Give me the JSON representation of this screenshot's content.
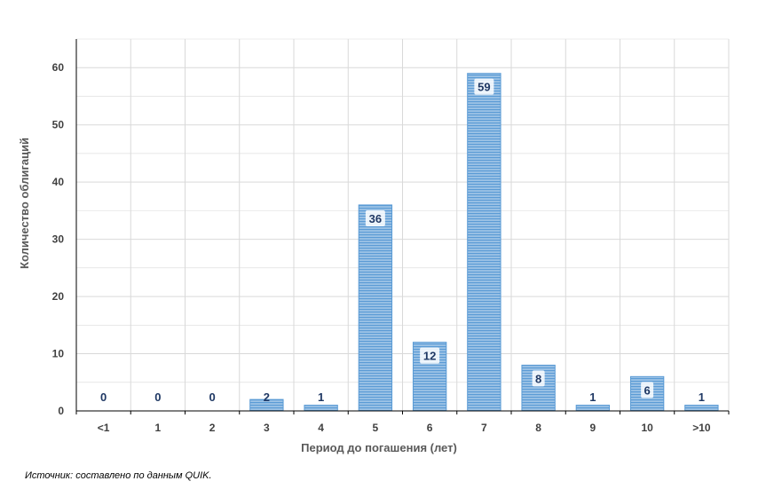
{
  "chart_data": {
    "type": "bar",
    "categories": [
      "<1",
      "1",
      "2",
      "3",
      "4",
      "5",
      "6",
      "7",
      "8",
      "9",
      "10",
      ">10"
    ],
    "values": [
      0,
      0,
      0,
      2,
      1,
      36,
      12,
      59,
      8,
      1,
      6,
      1
    ],
    "data_labels": [
      "0",
      "0",
      "0",
      "2",
      "1",
      "36",
      "12",
      "59",
      "8",
      "1",
      "6",
      "1"
    ],
    "title": "",
    "xlabel": "Период до погашения (лет)",
    "ylabel": "Количество облигаций",
    "ylim": [
      0,
      65
    ],
    "yticks": [
      0,
      10,
      20,
      30,
      40,
      50,
      60
    ],
    "grid": true,
    "legend": "none",
    "colors": {
      "bar_fill": "#9DC3E6",
      "bar_stripe": "#5B9BD5",
      "bar_border": "#5B9BD5",
      "label_bg": "#FFFFFF",
      "label_text": "#1F3864",
      "grid": "#D9D9D9",
      "axis": "#000000"
    }
  },
  "source_note": "Источник: составлено по данным QUIK."
}
